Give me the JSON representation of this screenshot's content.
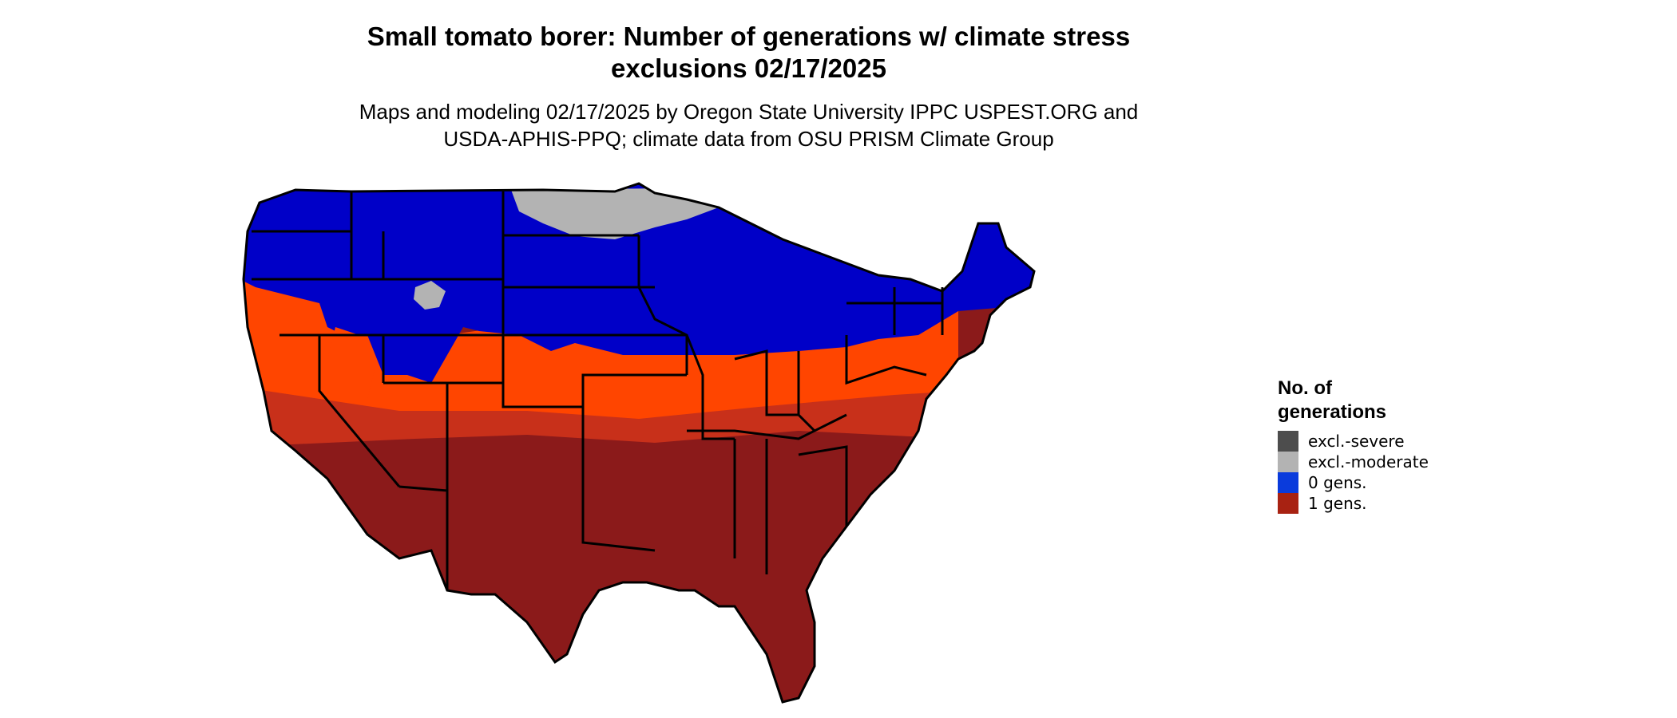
{
  "title_line1": "Small tomato borer: Number of generations w/ climate stress",
  "title_line2": "exclusions 02/17/2025",
  "subtitle_line1": "Maps and modeling 02/17/2025 by Oregon State University IPPC USPEST.ORG and",
  "subtitle_line2": "USDA-APHIS-PPQ; climate data from OSU PRISM Climate Group",
  "legend": {
    "title_line1": "No. of",
    "title_line2": "generations",
    "items": [
      {
        "label": "excl.-severe",
        "color": "#4d4d4d"
      },
      {
        "label": "excl.-moderate",
        "color": "#b3b3b3"
      },
      {
        "label": "0 gens.",
        "color": "#0a3bdc"
      },
      {
        "label": "1 gens.",
        "color": "#a82212"
      }
    ]
  },
  "map_colors": {
    "zero_gens": "#0000c8",
    "moderate_exclusion": "#b3b3b3",
    "warm_band": "#ff4500",
    "mid_band": "#d8361a",
    "one_gen": "#8b1a1a"
  }
}
